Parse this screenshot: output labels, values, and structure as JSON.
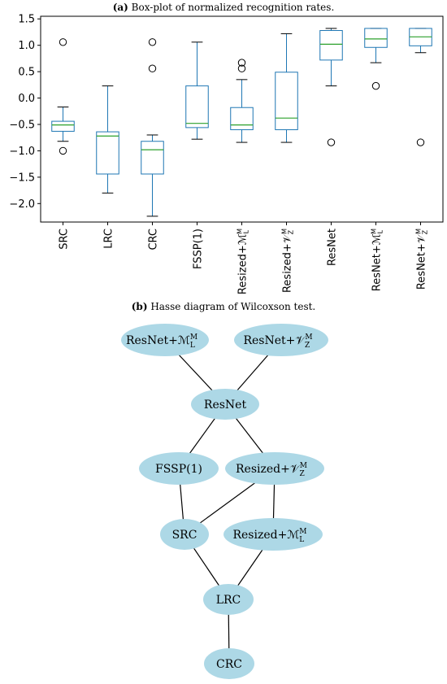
{
  "caption_a": {
    "letter": "(a)",
    "text": " Box-plot of normalized recognition rates."
  },
  "caption_b": {
    "letter": "(b)",
    "text": " Hasse diagram of Wilcoxson test."
  },
  "chart_data": {
    "type": "box",
    "ylim": [
      -2.35,
      1.55
    ],
    "yticks": [
      1.5,
      1.0,
      0.5,
      0.0,
      -0.5,
      -1.0,
      -1.5,
      -2.0
    ],
    "ytick_labels": [
      "1.5",
      "1.0",
      "0.5",
      "0.0",
      "−0.5",
      "−1.0",
      "−1.5",
      "−2.0"
    ],
    "box_color": "#1f77b4",
    "median_color": "#2ca02c",
    "categories": [
      "SRC",
      "LRC",
      "CRC",
      "FSSP(1)",
      "Resized+ℳ",
      "Resized+𝒱",
      "ResNet",
      "ResNet+ℳ",
      "ResNet+𝒱"
    ],
    "category_scripts": [
      [
        "",
        ""
      ],
      [
        "",
        ""
      ],
      [
        "",
        ""
      ],
      [
        "",
        ""
      ],
      [
        "M",
        "L"
      ],
      [
        "M",
        "Z"
      ],
      [
        "",
        ""
      ],
      [
        "M",
        "L"
      ],
      [
        "M",
        "Z"
      ]
    ],
    "boxes": [
      {
        "whislo": -0.82,
        "q1": -0.63,
        "med": -0.51,
        "q3": -0.44,
        "whishi": -0.17,
        "fliers": [
          1.06,
          -1.0
        ]
      },
      {
        "whislo": -1.8,
        "q1": -1.44,
        "med": -0.72,
        "q3": -0.64,
        "whishi": 0.23,
        "fliers": []
      },
      {
        "whislo": -2.24,
        "q1": -1.44,
        "med": -0.98,
        "q3": -0.82,
        "whishi": -0.7,
        "fliers": [
          1.06,
          0.56
        ]
      },
      {
        "whislo": -0.78,
        "q1": -0.56,
        "med": -0.48,
        "q3": 0.23,
        "whishi": 1.06,
        "fliers": []
      },
      {
        "whislo": -0.84,
        "q1": -0.6,
        "med": -0.51,
        "q3": -0.18,
        "whishi": 0.35,
        "fliers": [
          0.67,
          0.56
        ]
      },
      {
        "whislo": -0.84,
        "q1": -0.6,
        "med": -0.38,
        "q3": 0.49,
        "whishi": 1.22,
        "fliers": []
      },
      {
        "whislo": 0.23,
        "q1": 0.72,
        "med": 1.02,
        "q3": 1.28,
        "whishi": 1.32,
        "fliers": [
          -0.84
        ]
      },
      {
        "whislo": 0.67,
        "q1": 0.96,
        "med": 1.12,
        "q3": 1.32,
        "whishi": 1.32,
        "fliers": [
          0.23
        ]
      },
      {
        "whislo": 0.86,
        "q1": 0.99,
        "med": 1.16,
        "q3": 1.32,
        "whishi": 1.32,
        "fliers": [
          -0.84
        ]
      }
    ]
  },
  "hasse": {
    "node_color": "#add8e6",
    "nodes": [
      {
        "id": "resnet_ml",
        "label": "ResNet+ℳ",
        "sup": "M",
        "sub": "L"
      },
      {
        "id": "resnet_vz",
        "label": "ResNet+𝒱",
        "sup": "M",
        "sub": "Z"
      },
      {
        "id": "resnet",
        "label": "ResNet",
        "sup": "",
        "sub": ""
      },
      {
        "id": "fssp",
        "label": "FSSP(1)",
        "sup": "",
        "sub": ""
      },
      {
        "id": "resized_vz",
        "label": "Resized+𝒱",
        "sup": "M",
        "sub": "Z"
      },
      {
        "id": "src",
        "label": "SRC",
        "sup": "",
        "sub": ""
      },
      {
        "id": "resized_ml",
        "label": "Resized+ℳ",
        "sup": "M",
        "sub": "L"
      },
      {
        "id": "lrc",
        "label": "LRC",
        "sup": "",
        "sub": ""
      },
      {
        "id": "crc",
        "label": "CRC",
        "sup": "",
        "sub": ""
      }
    ],
    "edges": [
      [
        "resnet_ml",
        "resnet"
      ],
      [
        "resnet_vz",
        "resnet"
      ],
      [
        "resnet",
        "fssp"
      ],
      [
        "resnet",
        "resized_vz"
      ],
      [
        "fssp",
        "src"
      ],
      [
        "resized_vz",
        "src"
      ],
      [
        "resized_vz",
        "resized_ml"
      ],
      [
        "src",
        "lrc"
      ],
      [
        "resized_ml",
        "lrc"
      ],
      [
        "lrc",
        "crc"
      ]
    ]
  }
}
